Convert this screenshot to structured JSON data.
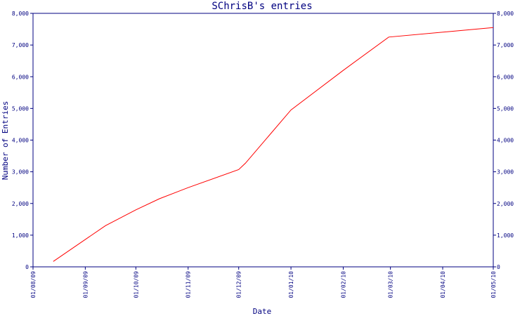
{
  "chart_data": {
    "type": "line",
    "title": "SChrisB's entries",
    "xlabel": "Date",
    "ylabel": "Number of Entries",
    "x_ticks": [
      "01/08/09",
      "01/09/09",
      "01/10/09",
      "01/11/09",
      "01/12/09",
      "01/01/10",
      "01/02/10",
      "01/03/10",
      "01/04/10",
      "01/05/10"
    ],
    "y_ticks": [
      "0",
      "1,000",
      "2,000",
      "3,000",
      "4,000",
      "5,000",
      "6,000",
      "7,000",
      "8,000"
    ],
    "ylim": [
      0,
      8000
    ],
    "xlim": [
      "2009-08-01",
      "2010-05-01"
    ],
    "grid": false,
    "right_axis": true,
    "series": [
      {
        "color": "#ff0000",
        "points": [
          {
            "x": "2009-08-13",
            "y": 170
          },
          {
            "x": "2009-09-13",
            "y": 1300
          },
          {
            "x": "2009-10-01",
            "y": 1800
          },
          {
            "x": "2009-10-15",
            "y": 2150
          },
          {
            "x": "2009-11-01",
            "y": 2500
          },
          {
            "x": "2009-12-01",
            "y": 3070
          },
          {
            "x": "2009-12-05",
            "y": 3270
          },
          {
            "x": "2010-01-01",
            "y": 4950
          },
          {
            "x": "2010-02-01",
            "y": 6200
          },
          {
            "x": "2010-02-28",
            "y": 7250
          },
          {
            "x": "2010-05-01",
            "y": 7550
          }
        ]
      }
    ]
  }
}
